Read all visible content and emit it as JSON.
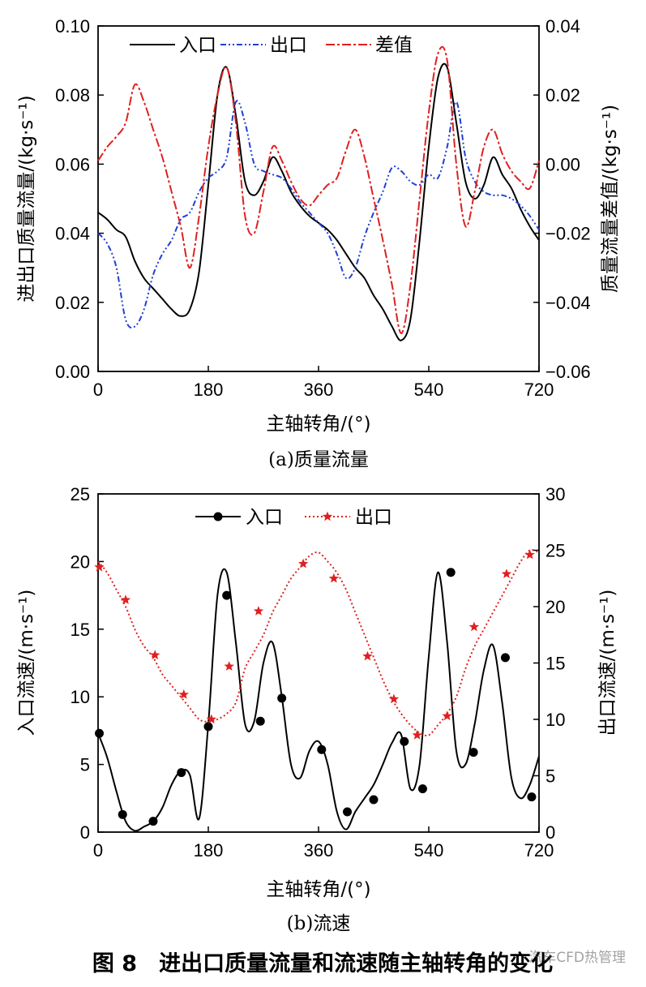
{
  "figure_title": "图 8　进出口质量流量和流速随主轴转角的变化",
  "watermark": "汽车CFD热管理",
  "chart_data": [
    {
      "type": "line",
      "caption": "(a)质量流量",
      "xlabel": "主轴转角/(°)",
      "ylabel": "进出口质量流量/(kg·s⁻¹)",
      "ylabel_right": "质量流量差值/(kg·s⁻¹)",
      "xlim": [
        0,
        720
      ],
      "ylim": [
        0,
        0.1
      ],
      "ylim_right": [
        -0.06,
        0.04
      ],
      "xticks": [
        "0",
        "180",
        "360",
        "540",
        "720"
      ],
      "yticks": [
        "0.00",
        "0.02",
        "0.04",
        "0.06",
        "0.08",
        "0.10"
      ],
      "yticks_right": [
        "-0.06",
        "-0.04",
        "-0.02",
        "0.00",
        "0.02",
        "0.04"
      ],
      "x": [
        0,
        15,
        30,
        45,
        60,
        75,
        90,
        105,
        120,
        135,
        150,
        165,
        180,
        195,
        210,
        225,
        240,
        255,
        270,
        285,
        300,
        315,
        330,
        345,
        360,
        375,
        390,
        405,
        420,
        435,
        450,
        465,
        480,
        495,
        510,
        525,
        540,
        555,
        570,
        585,
        600,
        615,
        630,
        645,
        660,
        675,
        690,
        705,
        720
      ],
      "series": [
        {
          "name": "入口",
          "axis": "left",
          "color": "#000000",
          "dash": "",
          "values": [
            0.046,
            0.044,
            0.041,
            0.039,
            0.032,
            0.027,
            0.024,
            0.021,
            0.018,
            0.016,
            0.018,
            0.029,
            0.054,
            0.08,
            0.088,
            0.074,
            0.055,
            0.051,
            0.055,
            0.062,
            0.058,
            0.052,
            0.048,
            0.045,
            0.043,
            0.041,
            0.038,
            0.034,
            0.03,
            0.027,
            0.022,
            0.018,
            0.013,
            0.009,
            0.015,
            0.038,
            0.065,
            0.085,
            0.088,
            0.072,
            0.055,
            0.05,
            0.054,
            0.062,
            0.057,
            0.053,
            0.047,
            0.042,
            0.038
          ]
        },
        {
          "name": "出口",
          "axis": "left",
          "color": "#1f3fd8",
          "dash": "7,3,2,3,2,3",
          "values": [
            0.04,
            0.037,
            0.03,
            0.015,
            0.013,
            0.018,
            0.028,
            0.034,
            0.038,
            0.044,
            0.046,
            0.052,
            0.056,
            0.058,
            0.062,
            0.078,
            0.072,
            0.06,
            0.058,
            0.057,
            0.056,
            0.053,
            0.049,
            0.046,
            0.043,
            0.04,
            0.034,
            0.027,
            0.03,
            0.039,
            0.046,
            0.052,
            0.059,
            0.058,
            0.055,
            0.054,
            0.057,
            0.056,
            0.065,
            0.078,
            0.062,
            0.055,
            0.052,
            0.051,
            0.051,
            0.05,
            0.048,
            0.045,
            0.041
          ]
        },
        {
          "name": "差值",
          "axis": "right",
          "color": "#e02020",
          "dash": "11,3,3,3",
          "values": [
            0.001,
            0.005,
            0.008,
            0.012,
            0.023,
            0.018,
            0.01,
            0.002,
            -0.008,
            -0.018,
            -0.03,
            -0.015,
            0.005,
            0.02,
            0.028,
            0.012,
            -0.015,
            -0.02,
            -0.008,
            0.005,
            0.001,
            -0.005,
            -0.01,
            -0.012,
            -0.009,
            -0.006,
            -0.004,
            0.004,
            0.01,
            0.002,
            -0.01,
            -0.022,
            -0.035,
            -0.049,
            -0.035,
            -0.01,
            0.015,
            0.032,
            0.03,
            0.0,
            -0.018,
            -0.008,
            0.005,
            0.01,
            0.003,
            -0.002,
            -0.005,
            -0.007,
            0.001
          ]
        }
      ]
    },
    {
      "type": "line",
      "caption": "(b)流速",
      "xlabel": "主轴转角/(°)",
      "ylabel": "入口流速/(m·s⁻¹)",
      "ylabel_right": "出口流速/(m·s⁻¹)",
      "xlim": [
        0,
        720
      ],
      "ylim": [
        0,
        25
      ],
      "ylim_right": [
        0,
        30
      ],
      "xticks": [
        "0",
        "180",
        "360",
        "540",
        "720"
      ],
      "yticks": [
        "0",
        "5",
        "10",
        "15",
        "20",
        "25"
      ],
      "yticks_right": [
        "0",
        "5",
        "10",
        "15",
        "20",
        "25",
        "30"
      ],
      "x": [
        0,
        15,
        30,
        45,
        60,
        75,
        90,
        105,
        120,
        135,
        150,
        165,
        180,
        195,
        210,
        225,
        240,
        255,
        270,
        285,
        300,
        315,
        330,
        345,
        360,
        375,
        390,
        405,
        420,
        435,
        450,
        465,
        480,
        495,
        510,
        525,
        540,
        555,
        570,
        585,
        600,
        615,
        630,
        645,
        660,
        675,
        690,
        705,
        720
      ],
      "series": [
        {
          "name": "入口",
          "axis": "left",
          "color": "#000000",
          "dash": "",
          "marker": "circle",
          "values": [
            7.3,
            5.5,
            3.0,
            0.8,
            0.1,
            0.4,
            0.8,
            1.8,
            3.5,
            4.5,
            4.2,
            1.0,
            8.0,
            17.5,
            19.2,
            14.0,
            8.0,
            8.2,
            12.5,
            14.0,
            10.0,
            5.0,
            4.0,
            6.0,
            6.7,
            5.0,
            1.5,
            0.2,
            1.5,
            2.5,
            3.5,
            5.0,
            6.6,
            7.2,
            3.2,
            5.0,
            13.0,
            19.2,
            14.0,
            6.0,
            5.0,
            8.0,
            12.0,
            13.8,
            9.5,
            4.0,
            2.5,
            3.5,
            5.6
          ],
          "markers_x": [
            2,
            40,
            90,
            136,
            180,
            210,
            265,
            300,
            365,
            407,
            450,
            500,
            530,
            576,
            613,
            665,
            708
          ],
          "markers_y": [
            7.3,
            1.3,
            0.8,
            4.4,
            7.8,
            17.5,
            8.2,
            9.9,
            6.1,
            1.5,
            2.4,
            6.7,
            3.2,
            19.2,
            5.9,
            12.9,
            2.6
          ]
        },
        {
          "name": "出口",
          "axis": "right",
          "color": "#e02020",
          "dash": "2,3",
          "marker": "star",
          "values": [
            24.0,
            23.0,
            21.5,
            20.0,
            18.0,
            16.5,
            15.5,
            14.0,
            13.0,
            12.0,
            11.0,
            10.0,
            9.8,
            10.0,
            10.5,
            11.5,
            14.5,
            16.0,
            17.5,
            19.5,
            21.0,
            22.5,
            23.5,
            24.5,
            24.8,
            24.0,
            23.0,
            21.5,
            19.5,
            17.5,
            15.5,
            13.5,
            11.8,
            10.5,
            9.5,
            8.8,
            8.6,
            9.5,
            10.5,
            12.0,
            14.5,
            16.5,
            18.0,
            19.5,
            21.0,
            22.5,
            24.0,
            25.0,
            24.8
          ],
          "markers_x": [
            2,
            45,
            93,
            140,
            185,
            214,
            262,
            335,
            385,
            440,
            483,
            521,
            570,
            614,
            667,
            705
          ],
          "markers_y": [
            23.5,
            20.6,
            15.7,
            12.2,
            10.0,
            14.7,
            19.6,
            23.8,
            22.5,
            15.6,
            11.8,
            8.6,
            10.3,
            18.2,
            22.9,
            24.6
          ]
        }
      ]
    }
  ]
}
